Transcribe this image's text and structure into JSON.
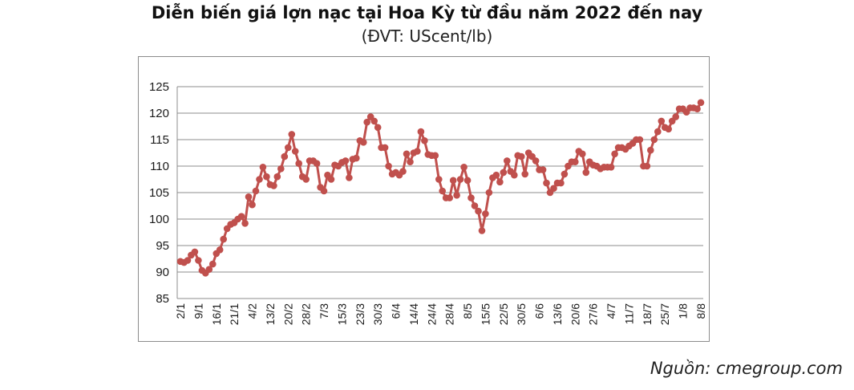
{
  "title": "Diễn biến giá lợn nạc tại Hoa Kỳ từ đầu năm 2022 đến nay",
  "subtitle": "(ĐVT: UScent/lb)",
  "source": "Nguồn: cmegroup.com",
  "colors": {
    "series": "#c0504d",
    "grid": "#8c8c8c",
    "text": "#1a1a1a"
  },
  "chart_data": {
    "type": "line",
    "title": "Diễn biến giá lợn nạc tại Hoa Kỳ từ đầu năm 2022 đến nay",
    "subtitle": "(ĐVT: UScent/lb)",
    "xlabel": "",
    "ylabel": "",
    "ylim": [
      85,
      125
    ],
    "yticks": [
      85,
      90,
      95,
      100,
      105,
      110,
      115,
      120,
      125
    ],
    "grid": "horizontal",
    "legend": "none",
    "x_tick_labels": [
      "2/1",
      "9/1",
      "16/1",
      "21/1",
      "4/2",
      "13/2",
      "20/2",
      "28/2",
      "7/3",
      "15/3",
      "23/3",
      "30/3",
      "6/4",
      "14/4",
      "24/4",
      "28/4",
      "8/5",
      "15/5",
      "22/5",
      "30/5",
      "6/6",
      "13/6",
      "20/6",
      "27/6",
      "4/7",
      "11/7",
      "18/7",
      "25/7",
      "1/8",
      "8/8"
    ],
    "series": [
      {
        "values": [
          92.0,
          91.8,
          92.2,
          93.2,
          93.8,
          92.2,
          90.3,
          89.8,
          90.5,
          91.5,
          93.5,
          94.2,
          96.2,
          98.2,
          99.0,
          99.3,
          100.0,
          100.5,
          99.2,
          104.2,
          102.7,
          105.3,
          107.5,
          109.8,
          108.0,
          106.5,
          106.3,
          108.0,
          109.5,
          111.8,
          113.5,
          116.0,
          112.8,
          110.5,
          108.0,
          107.5,
          111.0,
          111.0,
          110.5,
          106.0,
          105.3,
          108.3,
          107.5,
          110.2,
          110.0,
          110.7,
          111.0,
          107.8,
          111.3,
          111.5,
          114.8,
          114.5,
          118.3,
          119.3,
          118.5,
          117.3,
          113.5,
          113.5,
          110.0,
          108.5,
          108.8,
          108.3,
          109.0,
          112.3,
          110.8,
          112.5,
          112.8,
          116.5,
          114.8,
          112.2,
          112.0,
          112.0,
          107.5,
          105.3,
          104.0,
          104.0,
          107.3,
          104.5,
          107.5,
          109.8,
          107.3,
          104.0,
          102.5,
          101.5,
          97.8,
          101.0,
          105.0,
          107.8,
          108.3,
          107.0,
          108.8,
          111.0,
          109.0,
          108.3,
          112.0,
          111.8,
          108.5,
          112.5,
          111.8,
          111.0,
          109.3,
          109.3,
          106.8,
          105.0,
          105.8,
          106.8,
          106.8,
          108.5,
          110.0,
          110.8,
          110.8,
          112.8,
          112.3,
          108.8,
          110.8,
          110.2,
          110.0,
          109.5,
          109.8,
          109.8,
          109.8,
          112.3,
          113.5,
          113.5,
          113.2,
          113.8,
          114.3,
          115.0,
          115.0,
          110.0,
          110.0,
          113.0,
          115.0,
          116.5,
          118.5,
          117.3,
          117.0,
          118.5,
          119.3,
          120.8,
          120.8,
          120.2,
          121.0,
          121.0,
          120.8,
          122.0
        ]
      }
    ]
  }
}
